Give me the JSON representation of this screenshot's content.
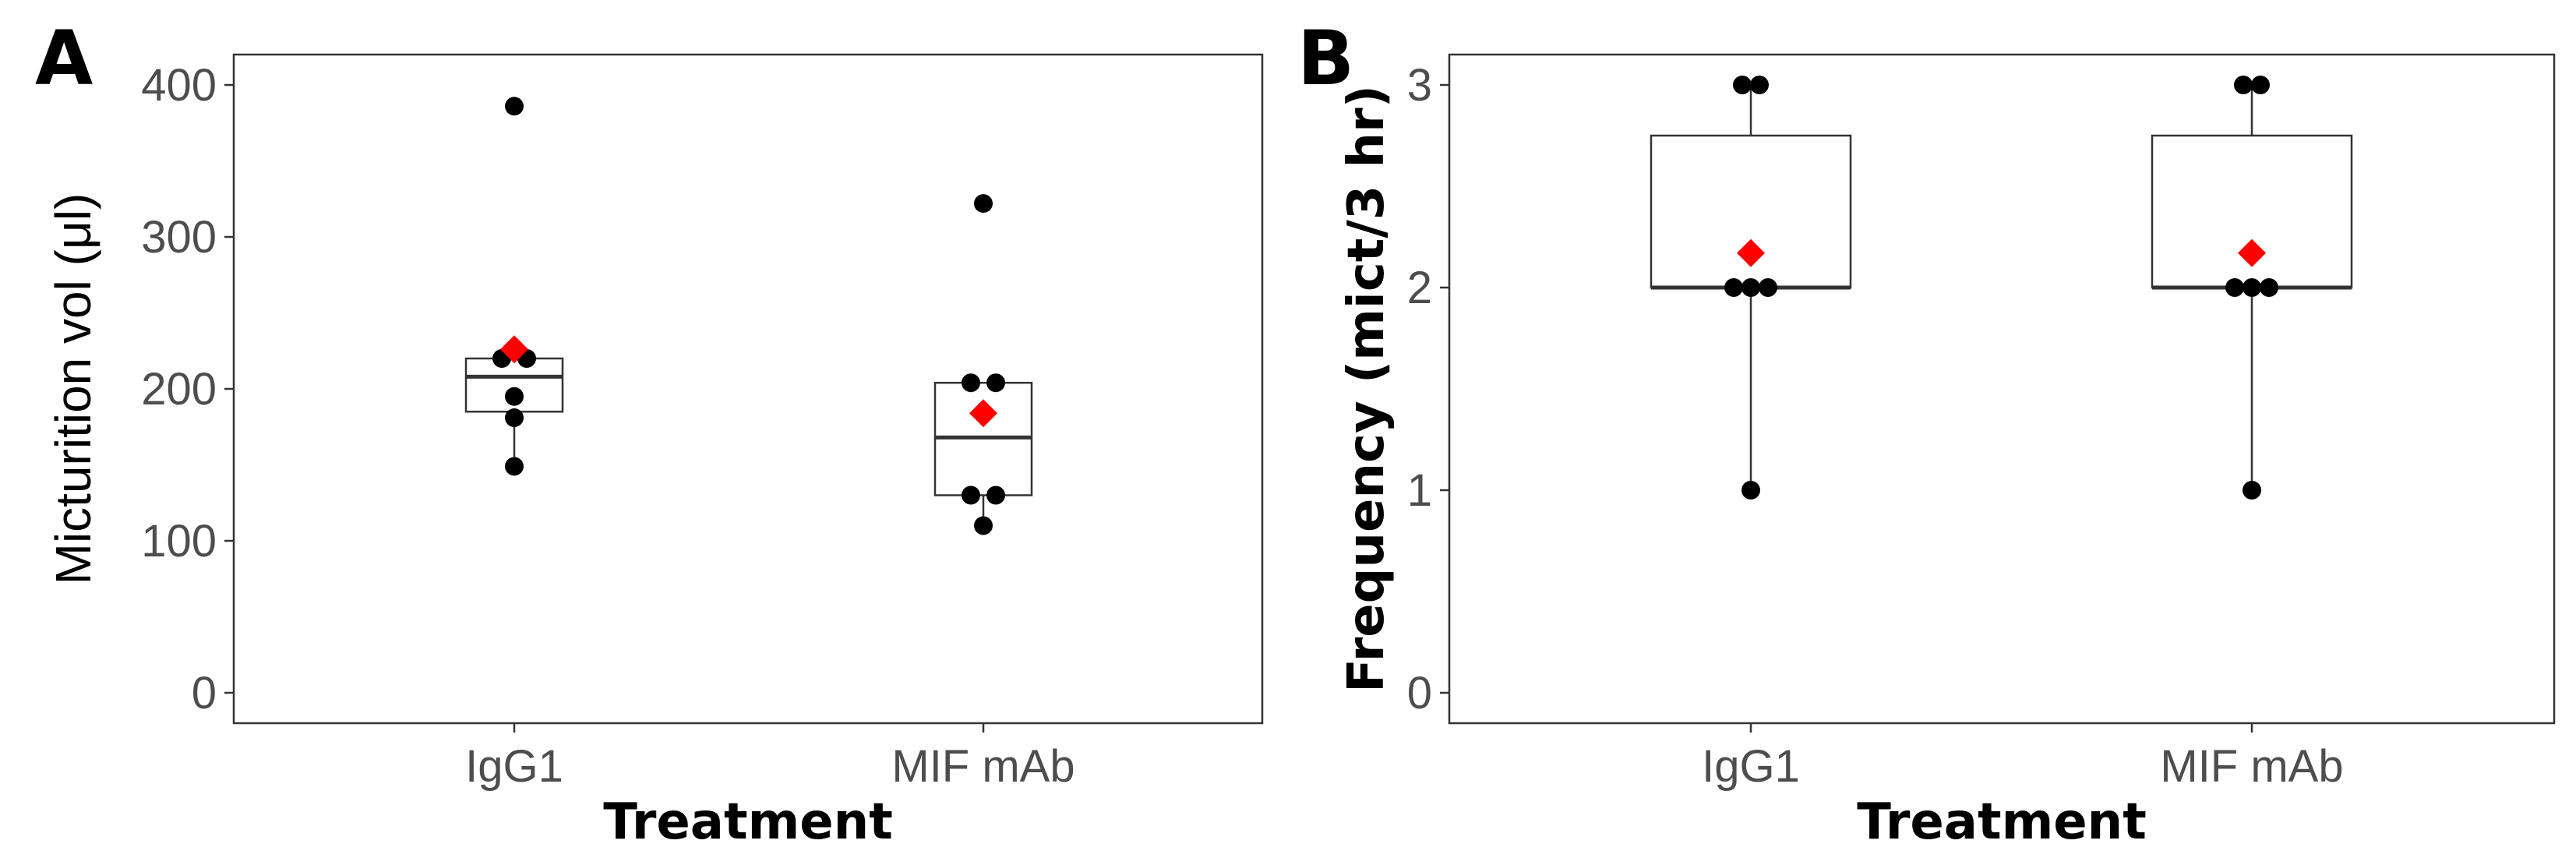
{
  "panels": [
    {
      "label": "A",
      "xlabel": "Treatment",
      "ylabel": "Micturition vol (μl)"
    },
    {
      "label": "B",
      "xlabel": "Treatment",
      "ylabel": "Frequency (mict/3 hr)"
    }
  ],
  "chart_data": [
    {
      "type": "box",
      "panel": "A",
      "categories": [
        "IgG1",
        "MIF mAb"
      ],
      "xlabel": "Treatment",
      "ylabel": "Micturition vol (μl)",
      "ylim": [
        -20,
        420
      ],
      "yticks": [
        0,
        100,
        200,
        300,
        400
      ],
      "grid": false,
      "boxes": [
        {
          "category": "IgG1",
          "lower_whisker": 149,
          "q1": 185,
          "median": 208,
          "q3": 220,
          "upper_whisker": 220,
          "mean": 226
        },
        {
          "category": "MIF mAb",
          "lower_whisker": 110,
          "q1": 130,
          "median": 168,
          "q3": 204,
          "upper_whisker": 204,
          "mean": 184
        }
      ],
      "points": [
        {
          "category": "IgG1",
          "y": 386,
          "offset": 0
        },
        {
          "category": "IgG1",
          "y": 220,
          "offset": -1
        },
        {
          "category": "IgG1",
          "y": 220,
          "offset": 1
        },
        {
          "category": "IgG1",
          "y": 195,
          "offset": 0
        },
        {
          "category": "IgG1",
          "y": 181,
          "offset": 0
        },
        {
          "category": "IgG1",
          "y": 149,
          "offset": 0
        },
        {
          "category": "MIF mAb",
          "y": 322,
          "offset": 0
        },
        {
          "category": "MIF mAb",
          "y": 204,
          "offset": -1
        },
        {
          "category": "MIF mAb",
          "y": 204,
          "offset": 1
        },
        {
          "category": "MIF mAb",
          "y": 130,
          "offset": -1
        },
        {
          "category": "MIF mAb",
          "y": 130,
          "offset": 1
        },
        {
          "category": "MIF mAb",
          "y": 110,
          "offset": 0
        }
      ],
      "point_color": "#000000",
      "mean_color": "#ff0000"
    },
    {
      "type": "box",
      "panel": "B",
      "categories": [
        "IgG1",
        "MIF mAb"
      ],
      "xlabel": "Treatment",
      "ylabel": "Frequency (mict/3 hr)",
      "ylim": [
        -0.15,
        3.15
      ],
      "yticks": [
        0,
        1,
        2,
        3
      ],
      "grid": false,
      "boxes": [
        {
          "category": "IgG1",
          "lower_whisker": 1,
          "q1": 2,
          "median": 2,
          "q3": 2.75,
          "upper_whisker": 3,
          "mean": 2.17
        },
        {
          "category": "MIF mAb",
          "lower_whisker": 1,
          "q1": 2,
          "median": 2,
          "q3": 2.75,
          "upper_whisker": 3,
          "mean": 2.17
        }
      ],
      "points": [
        {
          "category": "IgG1",
          "y": 3,
          "offset": -0.5
        },
        {
          "category": "IgG1",
          "y": 3,
          "offset": 0.5
        },
        {
          "category": "IgG1",
          "y": 2,
          "offset": -1
        },
        {
          "category": "IgG1",
          "y": 2,
          "offset": 0
        },
        {
          "category": "IgG1",
          "y": 2,
          "offset": 1
        },
        {
          "category": "IgG1",
          "y": 1,
          "offset": 0
        },
        {
          "category": "MIF mAb",
          "y": 3,
          "offset": -0.5
        },
        {
          "category": "MIF mAb",
          "y": 3,
          "offset": 0.5
        },
        {
          "category": "MIF mAb",
          "y": 2,
          "offset": -1
        },
        {
          "category": "MIF mAb",
          "y": 2,
          "offset": 0
        },
        {
          "category": "MIF mAb",
          "y": 2,
          "offset": 1
        },
        {
          "category": "MIF mAb",
          "y": 1,
          "offset": 0
        }
      ],
      "point_color": "#000000",
      "mean_color": "#ff0000"
    }
  ]
}
